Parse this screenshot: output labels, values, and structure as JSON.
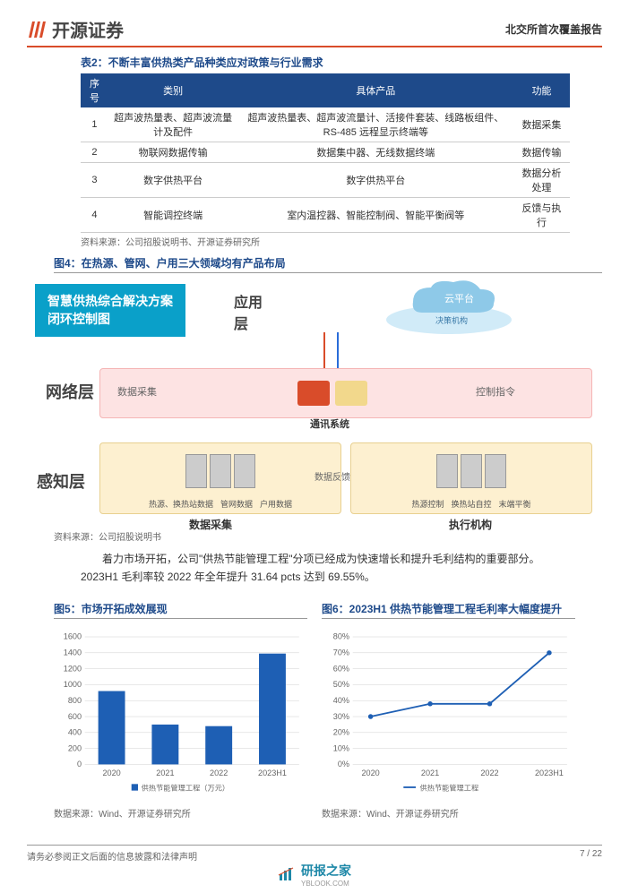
{
  "header": {
    "company": "开源证券",
    "report_type": "北交所首次覆盖报告"
  },
  "table2": {
    "title": "表2：不断丰富供热类产品种类应对政策与行业需求",
    "columns": [
      "序号",
      "类别",
      "具体产品",
      "功能"
    ],
    "rows": [
      [
        "1",
        "超声波热量表、超声波流量计及配件",
        "超声波热量表、超声波流量计、活接件套装、线路板组件、RS-485 远程显示终端等",
        "数据采集"
      ],
      [
        "2",
        "物联网数据传输",
        "数据集中器、无线数据终端",
        "数据传输"
      ],
      [
        "3",
        "数字供热平台",
        "数字供热平台",
        "数据分析处理"
      ],
      [
        "4",
        "智能调控终端",
        "室内温控器、智能控制阀、智能平衡阀等",
        "反馈与执行"
      ]
    ],
    "source": "资料来源：公司招股说明书、开源证券研究所"
  },
  "fig4": {
    "title": "图4：在热源、管网、户用三大领域均有产品布局",
    "diagram_title_l1": "智慧供热综合解决方案",
    "diagram_title_l2": "闭环控制图",
    "layers": {
      "app": "应用层",
      "net": "网络层",
      "sense": "感知层"
    },
    "cloud_label": "云平台",
    "decision": "决策机构",
    "net_left": "数据采集",
    "net_right": "控制指令",
    "comm_sys": "通讯系统",
    "feedback": "数据反馈",
    "collect_title": "数据采集",
    "exec_title": "执行机构",
    "sense_left": [
      "热源、换热站数据",
      "管网数据",
      "户用数据"
    ],
    "sense_right": [
      "热源控制",
      "换热站自控",
      "末端平衡"
    ],
    "source": "资料来源：公司招股说明书"
  },
  "body_text": "着力市场开拓，公司\"供热节能管理工程\"分项已经成为快速增长和提升毛利结构的重要部分。2023H1 毛利率较 2022 年全年提升 31.64 pcts 达到 69.55%。",
  "fig5": {
    "title": "图5：市场开拓成效展现",
    "type": "bar",
    "categories": [
      "2020",
      "2021",
      "2022",
      "2023H1"
    ],
    "values": [
      920,
      500,
      480,
      1390
    ],
    "legend": "供热节能管理工程（万元）",
    "bar_color": "#1e5fb4",
    "ylim": [
      0,
      1600
    ],
    "ytick_step": 200,
    "grid_color": "#cccccc",
    "label_fontsize": 10,
    "source": "数据来源：Wind、开源证券研究所"
  },
  "fig6": {
    "title": "图6：2023H1 供热节能管理工程毛利率大幅度提升",
    "type": "line",
    "categories": [
      "2020",
      "2021",
      "2022",
      "2023H1"
    ],
    "values": [
      30,
      38,
      38,
      70
    ],
    "legend": "供热节能管理工程",
    "line_color": "#1e5fb4",
    "ylim": [
      0,
      80
    ],
    "ytick_step": 10,
    "grid_color": "#cccccc",
    "label_fontsize": 10,
    "source": "数据来源：Wind、开源证券研究所"
  },
  "footer": {
    "disclaimer": "请务必参阅正文后面的信息披露和法律声明",
    "page": "7 / 22",
    "brand": "研报之家",
    "brand_sub": "YBLOOK.COM"
  }
}
